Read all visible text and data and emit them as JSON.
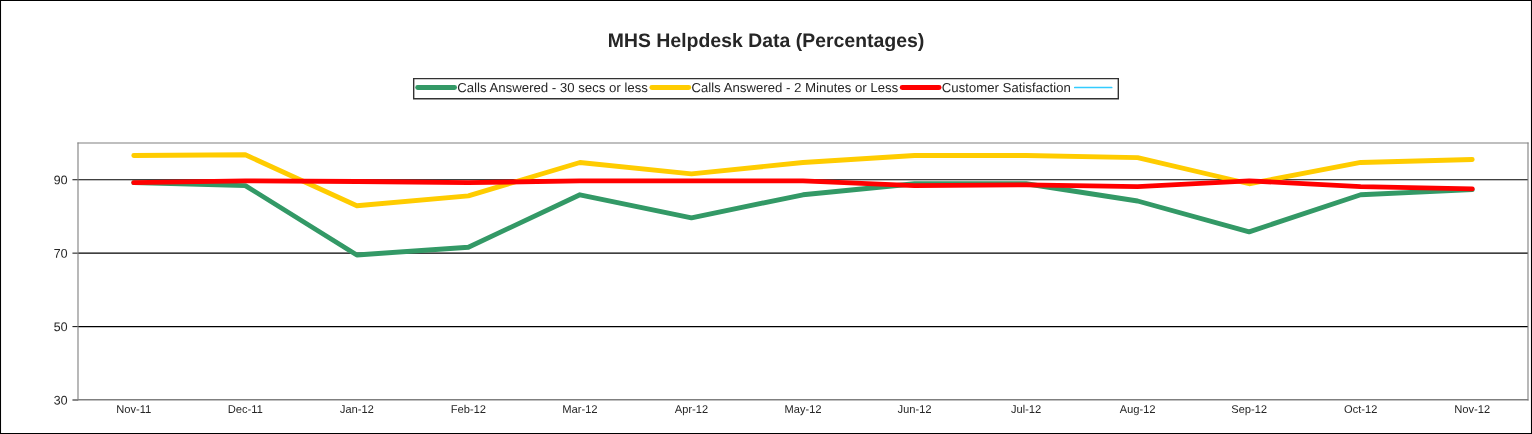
{
  "chart_data": {
    "type": "line",
    "title": "MHS Helpdesk Data (Percentages)",
    "categories": [
      "Nov-11",
      "Dec-11",
      "Jan-12",
      "Feb-12",
      "Mar-12",
      "Apr-12",
      "May-12",
      "Jun-12",
      "Jul-12",
      "Aug-12",
      "Sep-12",
      "Oct-12",
      "Nov-12"
    ],
    "series": [
      {
        "name": "Calls Answered - 30 secs or less",
        "color": "#339966",
        "values": [
          89.2,
          88.4,
          69.5,
          71.6,
          85.9,
          79.6,
          85.9,
          88.9,
          88.9,
          84.2,
          75.8,
          85.9,
          87.3
        ]
      },
      {
        "name": "Calls Answered - 2 Minutes or Less",
        "color": "#ffcc00",
        "values": [
          96.6,
          96.8,
          82.9,
          85.6,
          94.7,
          91.6,
          94.7,
          96.6,
          96.6,
          96.0,
          88.9,
          94.7,
          95.5
        ]
      },
      {
        "name": "Customer Satisfaction",
        "color": "#ff0000",
        "values": [
          89.2,
          89.7,
          89.5,
          89.2,
          89.7,
          89.7,
          89.7,
          88.4,
          88.6,
          88.1,
          89.7,
          88.1,
          87.5
        ]
      },
      {
        "color": "#33ccff",
        "values": [
          null,
          null,
          null,
          null,
          null,
          null,
          null,
          null,
          null,
          null,
          null,
          null,
          null
        ]
      }
    ],
    "ylim": [
      30,
      100
    ],
    "yticks": [
      30,
      50,
      70,
      90
    ],
    "grid": "y",
    "legend": "top",
    "marker": "none",
    "line_style": "solid"
  }
}
